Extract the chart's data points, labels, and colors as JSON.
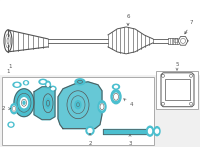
{
  "bg_color": "#f0f0f0",
  "border_color": "#aaaaaa",
  "cyan_color": "#4bbfcf",
  "dark_line": "#555555",
  "line_color": "#666666",
  "figsize": [
    2.0,
    1.47
  ],
  "dpi": 100,
  "upper_bg": "#f0f0f0",
  "lower_bg": "#ffffff",
  "inset_bg": "#ffffff"
}
